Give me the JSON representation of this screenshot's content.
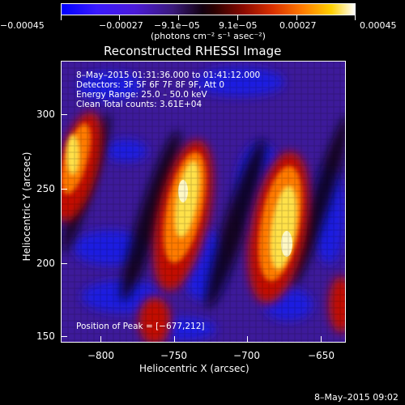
{
  "colorbar": {
    "tick_labels": [
      "−0.00045",
      "−0.00027",
      "−9.1e−05",
      "9.1e−05",
      "0.00027",
      "0.00045"
    ],
    "units": "(photons cm⁻² s⁻¹ asec⁻²)"
  },
  "title": "Reconstructed RHESSI Image",
  "info": {
    "time_range": "8–May–2015 01:31:36.000 to 01:41:12.000",
    "detectors": "Detectors: 3F 5F 6F 7F 8F 9F, Att 0",
    "energy": "Energy Range: 25.0 – 50.0 keV",
    "clean": "Clean     Total counts: 3.61E+04",
    "peak": "Position of Peak = [−677,212]"
  },
  "axes": {
    "xlabel": "Heliocentric X (arcsec)",
    "ylabel": "Heliocentric Y (arcsec)",
    "x_ticks": [
      "−800",
      "−750",
      "−700",
      "−650"
    ],
    "y_ticks": [
      "300",
      "250",
      "200",
      "150"
    ],
    "xlim": [
      -827,
      -633
    ],
    "ylim": [
      145,
      335
    ]
  },
  "timestamp": "8–May–2015 09:02",
  "colors": {
    "background": "#000000",
    "map_blue": "#1c1cff",
    "map_purple": "#4b1aa8",
    "map_red": "#cc1100",
    "map_orange": "#ff7a00",
    "map_yellow": "#ffe14a"
  }
}
